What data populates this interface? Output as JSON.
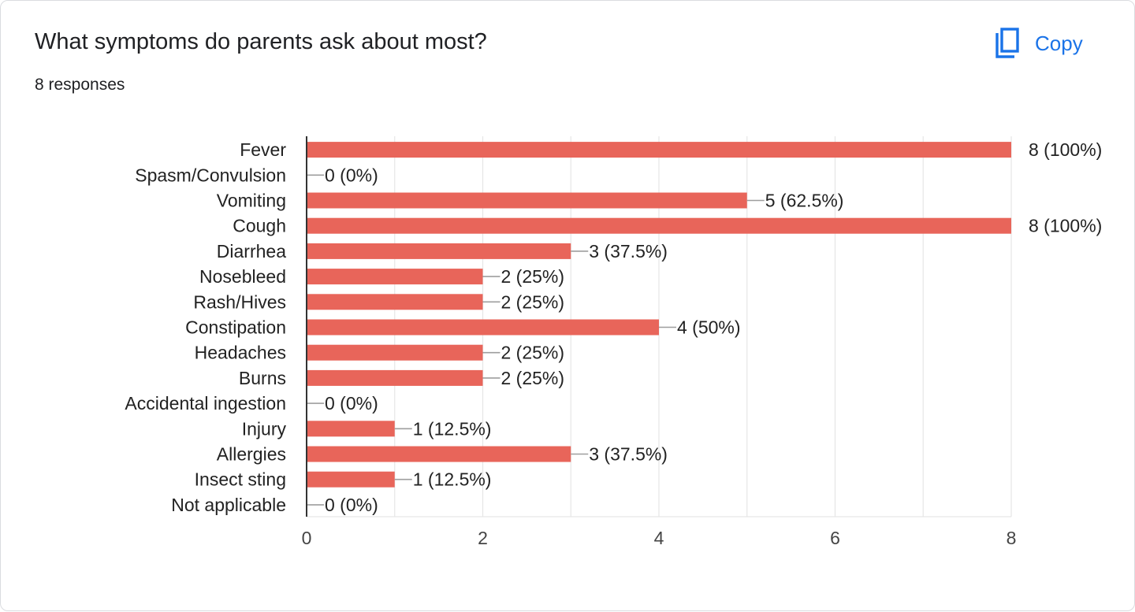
{
  "header": {
    "title": "What symptoms do parents ask about most?",
    "responses": "8 responses",
    "copy_label": "Copy",
    "copy_icon": "copy-icon"
  },
  "colors": {
    "bar": "#e8655a",
    "accent": "#1a73e8",
    "axis": "#333333",
    "grid": "#e6e6e6",
    "connector": "#9e9e9e"
  },
  "chart_data": {
    "type": "bar",
    "orientation": "horizontal",
    "title": "What symptoms do parents ask about most?",
    "categories": [
      "Fever",
      "Spasm/Convulsion",
      "Vomiting",
      "Cough",
      "Diarrhea",
      "Nosebleed",
      "Rash/Hives",
      "Constipation",
      "Headaches",
      "Burns",
      "Accidental ingestion",
      "Injury",
      "Allergies",
      "Insect sting",
      "Not applicable"
    ],
    "values": [
      8,
      0,
      5,
      8,
      3,
      2,
      2,
      4,
      2,
      2,
      0,
      1,
      3,
      1,
      0
    ],
    "labels": [
      "8 (100%)",
      "0 (0%)",
      "5 (62.5%)",
      "8 (100%)",
      "3 (37.5%)",
      "2 (25%)",
      "2 (25%)",
      "4 (50%)",
      "2 (25%)",
      "2 (25%)",
      "0 (0%)",
      "1 (12.5%)",
      "3 (37.5%)",
      "1 (12.5%)",
      "0 (0%)"
    ],
    "xlim": [
      0,
      8
    ],
    "xticks": [
      "0",
      "2",
      "4",
      "6",
      "8"
    ],
    "grid": true,
    "xlabel": "",
    "ylabel": ""
  }
}
